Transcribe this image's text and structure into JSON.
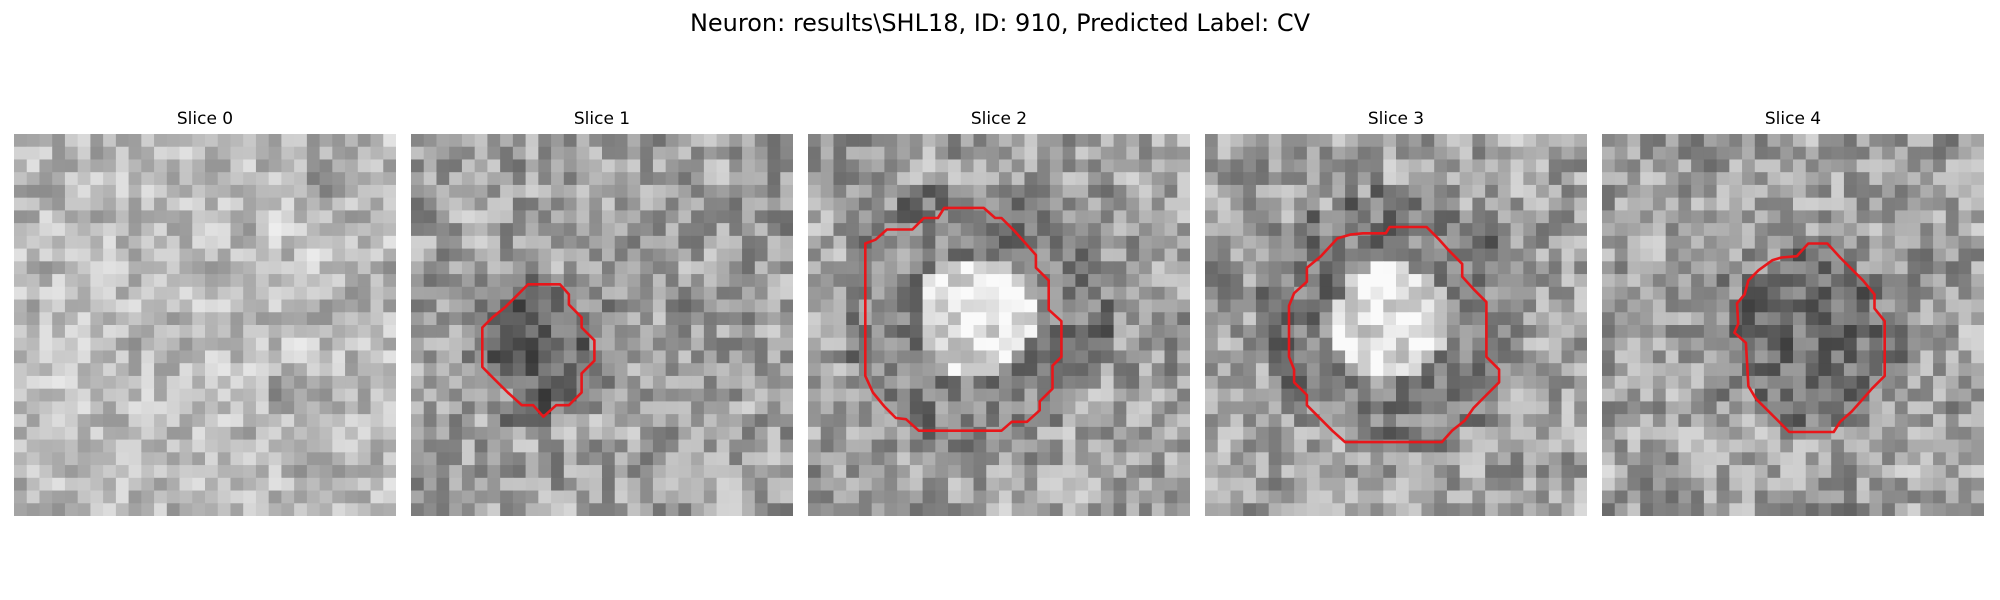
{
  "figure": {
    "suptitle": "Neuron: results\\SHL18, ID: 910, Predicted Label: CV",
    "contour_color": "#e8161a"
  },
  "slices": [
    {
      "title": "Slice 0",
      "seed": 11,
      "pattern": "none",
      "contour": false
    },
    {
      "title": "Slice 1",
      "seed": 23,
      "pattern": "dark",
      "contour": true
    },
    {
      "title": "Slice 2",
      "seed": 37,
      "pattern": "ring_bright",
      "contour": true
    },
    {
      "title": "Slice 3",
      "seed": 51,
      "pattern": "ring_bright",
      "contour": true
    },
    {
      "title": "Slice 4",
      "seed": 67,
      "pattern": "dark_blobs",
      "contour": true
    }
  ]
}
